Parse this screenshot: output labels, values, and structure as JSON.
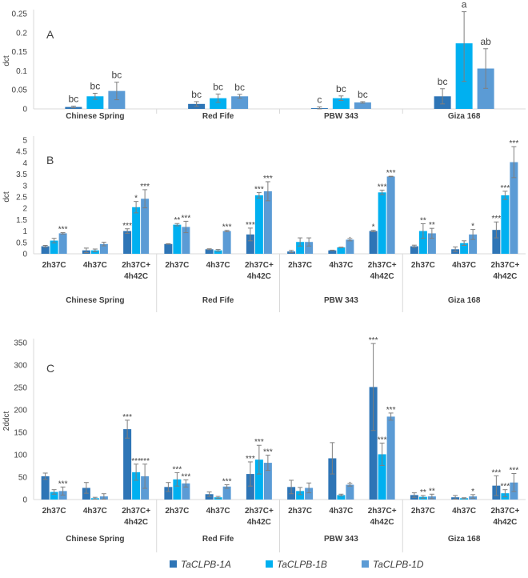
{
  "chart_data": [
    {
      "type": "bar",
      "panel": "A",
      "ylabel": "dct",
      "ylim": [
        0,
        0.25
      ],
      "yticks": [
        0,
        0.05,
        0.1,
        0.15,
        0.2,
        0.25
      ],
      "groups": [
        "Chinese Spring",
        "Red Fife",
        "PBW 343",
        "Giza 168"
      ],
      "series_names": [
        "TaCLPB-1A",
        "TaCLPB-1B",
        "TaCLPB-1D"
      ],
      "values": [
        [
          [
            0.005,
            0.033,
            0.047
          ]
        ],
        [
          [
            0.013,
            0.028,
            0.033
          ]
        ],
        [
          [
            0.002,
            0.028,
            0.017
          ]
        ],
        [
          [
            0.033,
            0.172,
            0.106
          ]
        ]
      ],
      "errors": [
        [
          [
            0.002,
            0.008,
            0.023
          ]
        ],
        [
          [
            0.006,
            0.011,
            0.005
          ]
        ],
        [
          [
            0.003,
            0.006,
            0.002
          ]
        ],
        [
          [
            0.02,
            0.1,
            0.052
          ]
        ]
      ],
      "labels": [
        [
          [
            "bc",
            "bc",
            "bc"
          ]
        ],
        [
          [
            "bc",
            "bc",
            "bc"
          ]
        ],
        [
          [
            "c",
            "bc",
            "bc"
          ]
        ],
        [
          [
            "bc",
            "a",
            "ab"
          ]
        ]
      ]
    },
    {
      "type": "bar",
      "panel": "B",
      "ylabel": "dct",
      "ylim": [
        0,
        5
      ],
      "yticks": [
        0,
        0.5,
        1,
        1.5,
        2,
        2.5,
        3,
        3.5,
        4,
        4.5,
        5
      ],
      "groups": [
        "Chinese Spring",
        "Red Fife",
        "PBW 343",
        "Giza 168"
      ],
      "categories": [
        [
          "2h37C"
        ],
        [
          "4h37C"
        ],
        [
          "2h37C+",
          "4h42C"
        ]
      ],
      "values": [
        [
          [
            0.33,
            0.58,
            0.9
          ],
          [
            0.15,
            0.15,
            0.43
          ],
          [
            1.0,
            2.05,
            2.42
          ]
        ],
        [
          [
            0.43,
            1.28,
            1.18
          ],
          [
            0.2,
            0.15,
            1.0
          ],
          [
            0.85,
            2.57,
            2.75
          ]
        ],
        [
          [
            0.1,
            0.52,
            0.52
          ],
          [
            0.15,
            0.28,
            0.62
          ],
          [
            1.0,
            2.7,
            3.4
          ]
        ],
        [
          [
            0.33,
            1.0,
            0.9
          ],
          [
            0.2,
            0.47,
            0.85
          ],
          [
            1.05,
            2.57,
            4.03
          ]
        ]
      ],
      "errors": [
        [
          [
            0.04,
            0.1,
            0.03
          ],
          [
            0.1,
            0.06,
            0.08
          ],
          [
            0.1,
            0.25,
            0.4
          ]
        ],
        [
          [
            0.01,
            0.05,
            0.25
          ],
          [
            0.02,
            0.04,
            0.03
          ],
          [
            0.28,
            0.12,
            0.42
          ]
        ],
        [
          [
            0.05,
            0.18,
            0.18
          ],
          [
            0.01,
            0.01,
            0.05
          ],
          [
            0.03,
            0.1,
            0.01
          ]
        ],
        [
          [
            0.05,
            0.32,
            0.22
          ],
          [
            0.1,
            0.1,
            0.22
          ],
          [
            0.35,
            0.18,
            0.68
          ]
        ]
      ],
      "labels": [
        [
          [
            "",
            "",
            "***"
          ],
          [
            "",
            "",
            ""
          ],
          [
            "***",
            "*",
            "***"
          ]
        ],
        [
          [
            "",
            "**",
            "***"
          ],
          [
            "",
            "",
            "***"
          ],
          [
            "***",
            "***",
            "***"
          ]
        ],
        [
          [
            "",
            "",
            ""
          ],
          [
            "",
            "",
            "."
          ],
          [
            "*",
            "***",
            "***"
          ]
        ],
        [
          [
            "",
            "**",
            "**"
          ],
          [
            "",
            "",
            "*"
          ],
          [
            "***",
            "***",
            "***"
          ]
        ]
      ]
    },
    {
      "type": "bar",
      "panel": "C",
      "ylabel": "2ddct",
      "ylim": [
        0,
        350
      ],
      "yticks": [
        0,
        50,
        100,
        150,
        200,
        250,
        300,
        350
      ],
      "groups": [
        "Chinese Spring",
        "Red Fife",
        "PBW 343",
        "Giza 168"
      ],
      "categories": [
        [
          "2h37C"
        ],
        [
          "4h37C"
        ],
        [
          "2h37C+",
          "4h42C"
        ]
      ],
      "values": [
        [
          [
            52,
            17,
            19
          ],
          [
            26,
            3,
            7
          ],
          [
            157,
            61,
            52
          ]
        ],
        [
          [
            28,
            45,
            36
          ],
          [
            12,
            5,
            29
          ],
          [
            57,
            89,
            82
          ]
        ],
        [
          [
            28,
            19,
            26
          ],
          [
            92,
            10,
            33
          ],
          [
            251,
            101,
            185
          ]
        ],
        [
          [
            10,
            6,
            7
          ],
          [
            5,
            3,
            7
          ],
          [
            31,
            14,
            38
          ]
        ]
      ],
      "errors": [
        [
          [
            7,
            5,
            9
          ],
          [
            12,
            2,
            6
          ],
          [
            20,
            18,
            27
          ]
        ],
        [
          [
            10,
            15,
            8
          ],
          [
            5,
            2,
            4
          ],
          [
            27,
            32,
            17
          ]
        ],
        [
          [
            15,
            8,
            11
          ],
          [
            35,
            2,
            3
          ],
          [
            97,
            25,
            8
          ]
        ],
        [
          [
            5,
            3,
            5
          ],
          [
            4,
            1,
            4
          ],
          [
            22,
            8,
            20
          ]
        ]
      ],
      "labels": [
        [
          [
            "",
            "",
            "***"
          ],
          [
            "",
            "",
            ""
          ],
          [
            "***",
            "***",
            "***"
          ]
        ],
        [
          [
            "",
            "***",
            "***"
          ],
          [
            "",
            "",
            "***"
          ],
          [
            "***",
            "***",
            "***"
          ]
        ],
        [
          [
            "",
            "",
            ""
          ],
          [
            "",
            "",
            "."
          ],
          [
            "***",
            "***",
            "***"
          ]
        ],
        [
          [
            "",
            "**",
            "**"
          ],
          [
            "",
            "",
            "*"
          ],
          [
            "***",
            "***",
            "***"
          ]
        ]
      ]
    }
  ],
  "panel_letters": [
    "A",
    "B",
    "C"
  ],
  "legend": [
    "TaCLPB-1A",
    "TaCLPB-1B",
    "TaCLPB-1D"
  ],
  "colors": [
    "#2e75b6",
    "#00b0f0",
    "#5b9bd5"
  ]
}
